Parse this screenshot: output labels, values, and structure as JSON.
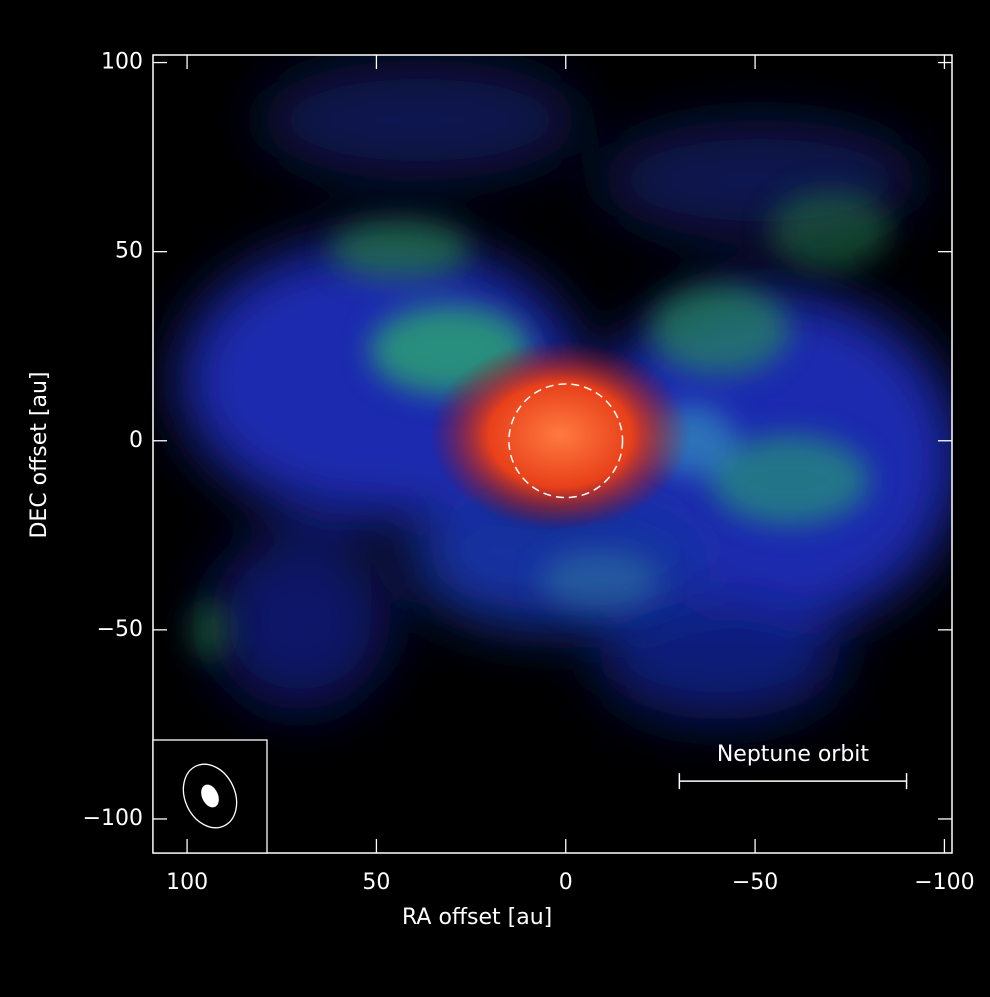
{
  "chart_data": {
    "type": "image",
    "xlabel": "RA offset [au]",
    "ylabel": "DEC offset [au]",
    "xlim": [
      109,
      -102
    ],
    "ylim": [
      -109,
      102
    ],
    "xticks": [
      {
        "value": 100,
        "label": "100"
      },
      50,
      0,
      {
        "value": -50,
        "label": "−50"
      },
      {
        "value": -100,
        "label": "−100"
      }
    ],
    "yticks": [
      {
        "value": 100,
        "label": "100"
      },
      50,
      0,
      {
        "value": -50,
        "label": "−50"
      },
      {
        "value": -100,
        "label": "−100"
      }
    ],
    "circle": {
      "center": [
        0,
        0
      ],
      "radius": 15
    },
    "scalebar": {
      "label": "Neptune orbit",
      "x": [
        -30,
        -90
      ],
      "y": -90
    }
  }
}
